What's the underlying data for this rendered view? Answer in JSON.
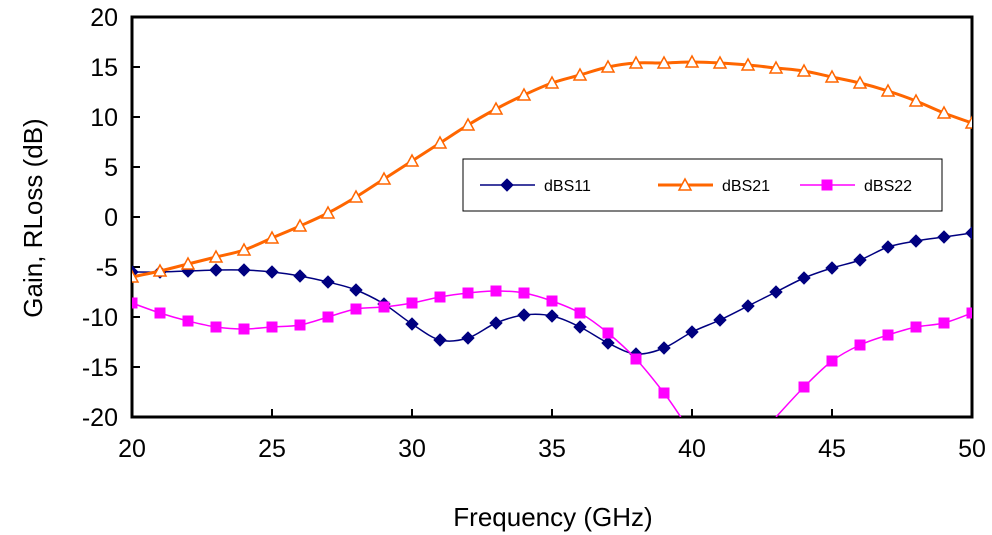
{
  "chart_data": {
    "type": "line",
    "title": "",
    "xlabel": "Frequency (GHz)",
    "ylabel": "Gain, RLoss (dB)",
    "xlim": [
      20,
      50
    ],
    "ylim": [
      -20,
      20
    ],
    "xticks": [
      20,
      25,
      30,
      35,
      40,
      45,
      50
    ],
    "yticks": [
      20,
      15,
      10,
      5,
      0,
      -5,
      -10,
      -15,
      -20
    ],
    "grid": false,
    "legend_position": "center-right",
    "series": [
      {
        "name": "dBS11",
        "color": "#000080",
        "marker": "diamond",
        "x": [
          20,
          21,
          22,
          23,
          24,
          25,
          26,
          27,
          28,
          29,
          30,
          31,
          32,
          33,
          34,
          35,
          36,
          37,
          38,
          39,
          40,
          41,
          42,
          43,
          44,
          45,
          46,
          47,
          48,
          49,
          50
        ],
        "y": [
          -5.5,
          -5.5,
          -5.4,
          -5.3,
          -5.3,
          -5.5,
          -5.9,
          -6.5,
          -7.3,
          -8.7,
          -10.7,
          -12.3,
          -12.1,
          -10.6,
          -9.8,
          -9.9,
          -11.0,
          -12.6,
          -13.7,
          -13.1,
          -11.5,
          -10.3,
          -8.9,
          -7.5,
          -6.1,
          -5.1,
          -4.3,
          -3.0,
          -2.4,
          -2.0,
          -1.6
        ],
        "curve": [
          [
            20,
            -5.5
          ],
          [
            21,
            -5.5
          ],
          [
            22,
            -5.4
          ],
          [
            23,
            -5.3
          ],
          [
            24,
            -5.3
          ],
          [
            25,
            -5.5
          ],
          [
            26,
            -5.9
          ],
          [
            27,
            -6.5
          ],
          [
            28,
            -7.3
          ],
          [
            29,
            -8.7
          ],
          [
            30,
            -10.7
          ],
          [
            31,
            -12.3
          ],
          [
            32,
            -12.1
          ],
          [
            33,
            -10.6
          ],
          [
            34,
            -9.8
          ],
          [
            35,
            -9.9
          ],
          [
            36,
            -11.0
          ],
          [
            37,
            -12.6
          ],
          [
            38,
            -13.7
          ],
          [
            39,
            -13.1
          ],
          [
            40,
            -11.5
          ],
          [
            41,
            -10.3
          ],
          [
            42,
            -8.9
          ],
          [
            43,
            -7.5
          ],
          [
            44,
            -6.1
          ],
          [
            45,
            -5.1
          ],
          [
            46,
            -4.3
          ],
          [
            47,
            -3.0
          ],
          [
            48,
            -2.4
          ],
          [
            49,
            -2.0
          ],
          [
            50,
            -1.6
          ]
        ]
      },
      {
        "name": "dBS21",
        "color": "#FF6600",
        "marker": "triangle",
        "x": [
          20,
          21,
          22,
          23,
          24,
          25,
          26,
          27,
          28,
          29,
          30,
          31,
          32,
          33,
          34,
          35,
          36,
          37,
          38,
          39,
          40,
          41,
          42,
          43,
          44,
          45,
          46,
          47,
          48,
          49,
          50
        ],
        "y": [
          -6.0,
          -5.4,
          -4.7,
          -4.0,
          -3.3,
          -2.1,
          -0.9,
          0.4,
          2.0,
          3.8,
          5.6,
          7.4,
          9.2,
          10.8,
          12.2,
          13.4,
          14.2,
          15.0,
          15.4,
          15.4,
          15.5,
          15.4,
          15.2,
          14.9,
          14.6,
          14.0,
          13.4,
          12.6,
          11.6,
          10.4,
          9.4
        ],
        "curve": [
          [
            20,
            -6.0
          ],
          [
            21,
            -5.4
          ],
          [
            22,
            -4.7
          ],
          [
            23,
            -4.0
          ],
          [
            24,
            -3.3
          ],
          [
            25,
            -2.1
          ],
          [
            26,
            -0.9
          ],
          [
            27,
            0.4
          ],
          [
            28,
            2.0
          ],
          [
            29,
            3.8
          ],
          [
            30,
            5.6
          ],
          [
            31,
            7.4
          ],
          [
            32,
            9.2
          ],
          [
            33,
            10.8
          ],
          [
            34,
            12.2
          ],
          [
            35,
            13.4
          ],
          [
            36,
            14.2
          ],
          [
            37,
            15.0
          ],
          [
            38,
            15.4
          ],
          [
            39,
            15.4
          ],
          [
            40,
            15.5
          ],
          [
            41,
            15.4
          ],
          [
            42,
            15.2
          ],
          [
            43,
            14.9
          ],
          [
            44,
            14.6
          ],
          [
            45,
            14.0
          ],
          [
            46,
            13.4
          ],
          [
            47,
            12.6
          ],
          [
            48,
            11.6
          ],
          [
            49,
            10.4
          ],
          [
            50,
            9.4
          ]
        ]
      },
      {
        "name": "dBS22",
        "color": "#FF00FF",
        "marker": "square",
        "x": [
          20,
          21,
          22,
          23,
          24,
          25,
          26,
          27,
          28,
          29,
          30,
          31,
          32,
          33,
          34,
          35,
          36,
          37,
          38,
          39,
          44,
          45,
          46,
          47,
          48,
          49,
          50
        ],
        "y": [
          -8.6,
          -9.6,
          -10.4,
          -11.0,
          -11.2,
          -11.0,
          -10.8,
          -10.0,
          -9.2,
          -9.0,
          -8.6,
          -8.0,
          -7.6,
          -7.4,
          -7.6,
          -8.4,
          -9.6,
          -11.6,
          -14.2,
          -17.6,
          -17.0,
          -14.4,
          -12.8,
          -11.8,
          -11.0,
          -10.6,
          -9.6
        ],
        "curve": [
          [
            20,
            -8.6
          ],
          [
            21,
            -9.6
          ],
          [
            22,
            -10.4
          ],
          [
            23,
            -11.0
          ],
          [
            24,
            -11.2
          ],
          [
            25,
            -11.0
          ],
          [
            26,
            -10.8
          ],
          [
            27,
            -10.0
          ],
          [
            28,
            -9.2
          ],
          [
            29,
            -9.0
          ],
          [
            30,
            -8.6
          ],
          [
            31,
            -8.0
          ],
          [
            32,
            -7.6
          ],
          [
            33,
            -7.4
          ],
          [
            34,
            -7.6
          ],
          [
            35,
            -8.4
          ],
          [
            36,
            -9.6
          ],
          [
            37,
            -11.6
          ],
          [
            38,
            -14.2
          ],
          [
            39,
            -17.6
          ],
          [
            39.6,
            -20.0
          ],
          null,
          [
            43.0,
            -20.0
          ],
          [
            44,
            -17.0
          ],
          [
            45,
            -14.4
          ],
          [
            46,
            -12.8
          ],
          [
            47,
            -11.8
          ],
          [
            48,
            -11.0
          ],
          [
            49,
            -10.6
          ],
          [
            50,
            -9.6
          ]
        ]
      }
    ]
  }
}
